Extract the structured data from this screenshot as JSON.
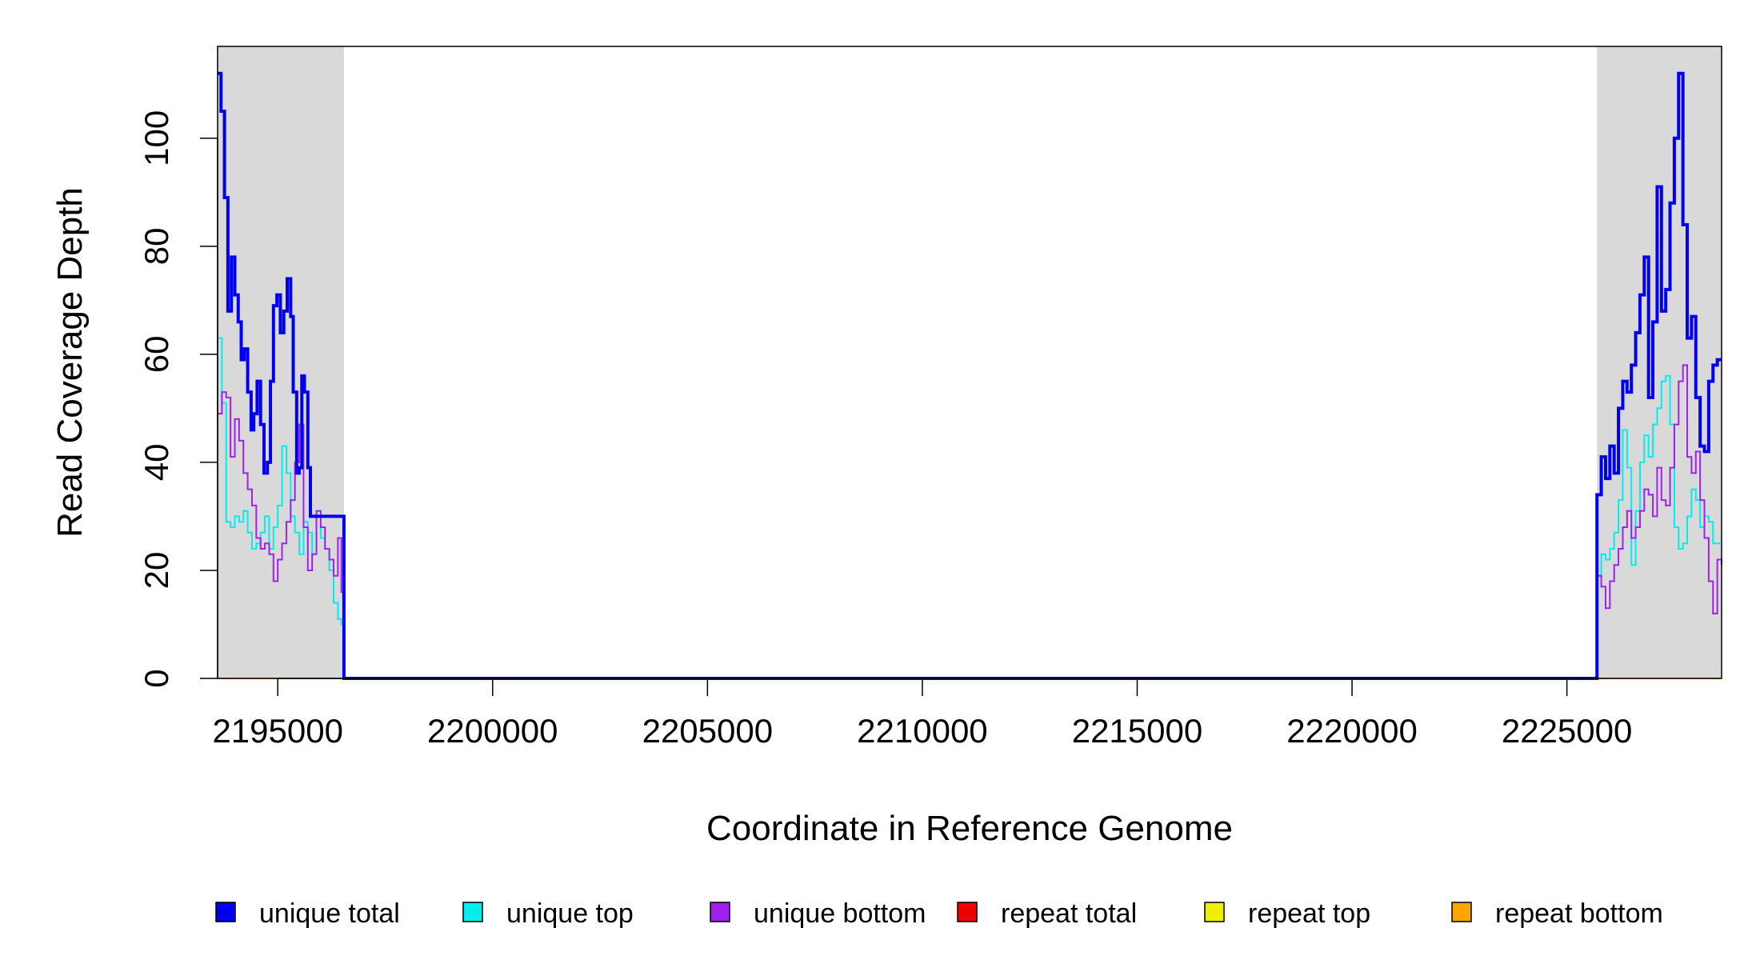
{
  "chart_data": {
    "type": "line",
    "title": "",
    "xlabel": "Coordinate in Reference Genome",
    "ylabel": "Read Coverage Depth",
    "xlim": [
      2193600,
      2228600
    ],
    "ylim": [
      0,
      117
    ],
    "x_ticks": [
      2195000,
      2200000,
      2205000,
      2210000,
      2215000,
      2220000,
      2225000
    ],
    "x_tick_labels": [
      "2195000",
      "2200000",
      "2205000",
      "2210000",
      "2215000",
      "2220000",
      "2225000"
    ],
    "y_ticks": [
      0,
      20,
      40,
      60,
      80,
      100
    ],
    "y_tick_labels": [
      "0",
      "20",
      "40",
      "60",
      "80",
      "100"
    ],
    "shaded_regions": [
      {
        "x0": 2193600,
        "x1": 2196540,
        "color": "#d9d9d9"
      },
      {
        "x0": 2225700,
        "x1": 2228600,
        "color": "#d9d9d9"
      }
    ],
    "legend": {
      "placement": "bottom",
      "entries": [
        {
          "label": "unique total",
          "color": "#0000ee"
        },
        {
          "label": "unique top",
          "color": "#00eeee"
        },
        {
          "label": "unique bottom",
          "color": "#a020f0"
        },
        {
          "label": "repeat total",
          "color": "#ee0000"
        },
        {
          "label": "repeat top",
          "color": "#eeee00"
        },
        {
          "label": "repeat bottom",
          "color": "#ffa500"
        }
      ]
    },
    "series": [
      {
        "name": "unique total",
        "color": "#0000ee",
        "step": true,
        "x": [
          2193600,
          2193680,
          2193760,
          2193840,
          2193920,
          2194000,
          2194080,
          2194150,
          2194220,
          2194300,
          2194380,
          2194440,
          2194520,
          2194600,
          2194680,
          2194760,
          2194830,
          2194900,
          2194980,
          2195060,
          2195140,
          2195220,
          2195300,
          2195360,
          2195440,
          2195500,
          2195560,
          2195620,
          2195700,
          2195760,
          2195840,
          2195920,
          2196000,
          2196080,
          2196160,
          2196240,
          2196300,
          2196380,
          2196460,
          2196540,
          2225700,
          2225800,
          2225900,
          2226000,
          2226100,
          2226200,
          2226300,
          2226400,
          2226500,
          2226600,
          2226700,
          2226800,
          2226900,
          2227000,
          2227100,
          2227200,
          2227300,
          2227400,
          2227500,
          2227600,
          2227700,
          2227800,
          2227900,
          2228000,
          2228100,
          2228200,
          2228300,
          2228400,
          2228500,
          2228600
        ],
        "y": [
          112,
          105,
          89,
          68,
          78,
          71,
          66,
          59,
          61,
          53,
          46,
          49,
          55,
          47,
          38,
          40,
          55,
          69,
          71,
          64,
          68,
          74,
          67,
          53,
          38,
          39,
          56,
          53,
          39,
          30,
          30,
          30,
          30,
          30,
          30,
          30,
          30,
          30,
          30,
          0,
          34,
          41,
          37,
          43,
          38,
          50,
          55,
          53,
          58,
          64,
          71,
          78,
          52,
          66,
          91,
          68,
          72,
          88,
          100,
          112,
          84,
          63,
          67,
          52,
          43,
          42,
          55,
          58,
          59,
          59
        ]
      },
      {
        "name": "unique top",
        "color": "#00eeee",
        "step": true,
        "x": [
          2193600,
          2193700,
          2193800,
          2193900,
          2194000,
          2194100,
          2194200,
          2194300,
          2194400,
          2194500,
          2194600,
          2194700,
          2194800,
          2194900,
          2195000,
          2195100,
          2195200,
          2195300,
          2195400,
          2195500,
          2195600,
          2195700,
          2195800,
          2195900,
          2196000,
          2196100,
          2196200,
          2196300,
          2196400,
          2196480,
          2196540,
          2225700,
          2225800,
          2225900,
          2226000,
          2226100,
          2226200,
          2226300,
          2226400,
          2226500,
          2226600,
          2226700,
          2226800,
          2226900,
          2227000,
          2227100,
          2227200,
          2227300,
          2227400,
          2227500,
          2227600,
          2227700,
          2227800,
          2227900,
          2228000,
          2228100,
          2228200,
          2228300,
          2228400,
          2228500,
          2228600
        ],
        "y": [
          63,
          51,
          29,
          28,
          30,
          29,
          31,
          27,
          24,
          25,
          27,
          30,
          24,
          28,
          32,
          43,
          38,
          30,
          27,
          23,
          29,
          27,
          23,
          30,
          26,
          24,
          20,
          14,
          11,
          10,
          0,
          19,
          23,
          22,
          24,
          27,
          33,
          46,
          39,
          21,
          31,
          40,
          45,
          41,
          47,
          50,
          55,
          56,
          47,
          28,
          24,
          25,
          30,
          35,
          33,
          28,
          30,
          29,
          25,
          25,
          25
        ]
      },
      {
        "name": "unique bottom",
        "color": "#a020f0",
        "step": true,
        "x": [
          2193600,
          2193700,
          2193800,
          2193900,
          2194000,
          2194100,
          2194200,
          2194300,
          2194400,
          2194500,
          2194600,
          2194700,
          2194800,
          2194900,
          2195000,
          2195100,
          2195200,
          2195300,
          2195400,
          2195500,
          2195600,
          2195700,
          2195800,
          2195900,
          2196000,
          2196100,
          2196200,
          2196300,
          2196400,
          2196480,
          2196540,
          2225700,
          2225800,
          2225900,
          2226000,
          2226100,
          2226200,
          2226300,
          2226400,
          2226500,
          2226600,
          2226700,
          2226800,
          2226900,
          2227000,
          2227100,
          2227200,
          2227300,
          2227400,
          2227500,
          2227600,
          2227700,
          2227800,
          2227900,
          2228000,
          2228100,
          2228200,
          2228300,
          2228400,
          2228500,
          2228600
        ],
        "y": [
          49,
          53,
          52,
          41,
          48,
          44,
          38,
          35,
          32,
          26,
          24,
          25,
          23,
          18,
          22,
          25,
          29,
          33,
          40,
          47,
          28,
          20,
          23,
          31,
          28,
          24,
          22,
          19,
          26,
          16,
          0,
          19,
          17,
          13,
          18,
          21,
          24,
          28,
          31,
          26,
          28,
          31,
          35,
          34,
          30,
          39,
          33,
          32,
          39,
          47,
          55,
          58,
          41,
          38,
          42,
          33,
          26,
          18,
          12,
          22,
          21
        ]
      },
      {
        "name": "repeat total",
        "color": "#ee0000",
        "step": true,
        "x": [
          2193600,
          2228600
        ],
        "y": [
          0,
          0
        ]
      },
      {
        "name": "repeat top",
        "color": "#eeee00",
        "step": true,
        "x": [
          2193600,
          2228600
        ],
        "y": [
          0,
          0
        ]
      },
      {
        "name": "repeat bottom",
        "color": "#ffa500",
        "step": true,
        "x": [
          2193600,
          2228600
        ],
        "y": [
          0,
          0
        ]
      }
    ]
  }
}
